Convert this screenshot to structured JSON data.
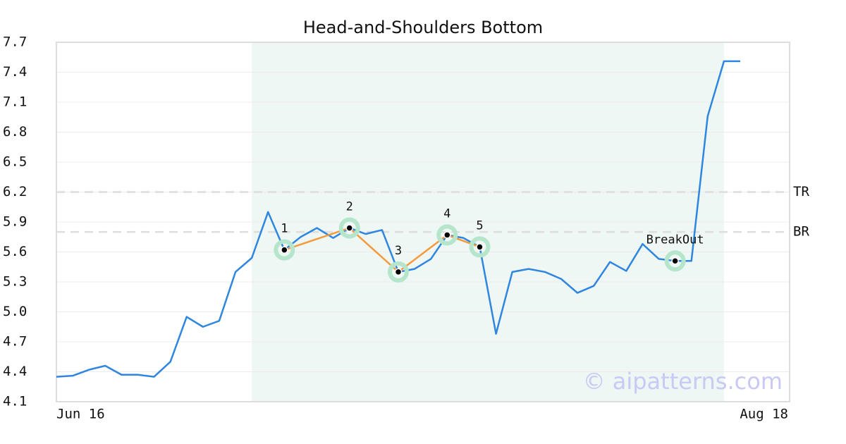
{
  "chart_data": {
    "type": "line",
    "title": "Head-and-Shoulders Bottom",
    "categories": [
      "Jun 16",
      null,
      null,
      null,
      null,
      null,
      null,
      null,
      null,
      null,
      null,
      null,
      null,
      null,
      null,
      null,
      null,
      null,
      null,
      null,
      null,
      null,
      null,
      null,
      null,
      null,
      null,
      null,
      null,
      null,
      null,
      null,
      null,
      null,
      null,
      null,
      null,
      null,
      null,
      null,
      null,
      null,
      "Aug 18"
    ],
    "values": [
      4.35,
      4.36,
      4.42,
      4.46,
      4.37,
      4.37,
      4.35,
      4.5,
      4.95,
      4.85,
      4.91,
      5.4,
      5.54,
      6.0,
      5.62,
      5.75,
      5.84,
      5.74,
      5.84,
      5.78,
      5.82,
      5.4,
      5.43,
      5.53,
      5.77,
      5.74,
      5.65,
      4.78,
      5.4,
      5.43,
      5.4,
      5.33,
      5.19,
      5.26,
      5.5,
      5.41,
      5.68,
      5.53,
      5.51,
      5.51,
      6.96,
      7.51,
      7.51
    ],
    "color": "#2f86e0",
    "ylim": [
      4.1,
      7.7
    ],
    "yticks": [
      4.1,
      4.4,
      4.7,
      {
        "value": 5,
        "label": "5.0"
      },
      5.3,
      5.6,
      5.9,
      6.2,
      6.5,
      6.8,
      7.1,
      7.4,
      7.7
    ],
    "grid": true,
    "highlight": [
      12,
      41
    ],
    "highlight_color": "#eef7f3",
    "pattern_color": "#f49a3c",
    "pattern_points": [
      {
        "label": "1",
        "x": 14
      },
      {
        "label": "2",
        "x": 18
      },
      {
        "label": "3",
        "x": 21
      },
      {
        "label": "4",
        "x": 24
      },
      {
        "label": "5",
        "x": 26
      }
    ],
    "breakout": {
      "label": "BreakOut",
      "x": 38
    },
    "levels": [
      {
        "label": "TR",
        "value": 6.2
      },
      {
        "label": "BR",
        "value": 5.8
      }
    ],
    "watermark": "© aipatterns.com"
  }
}
